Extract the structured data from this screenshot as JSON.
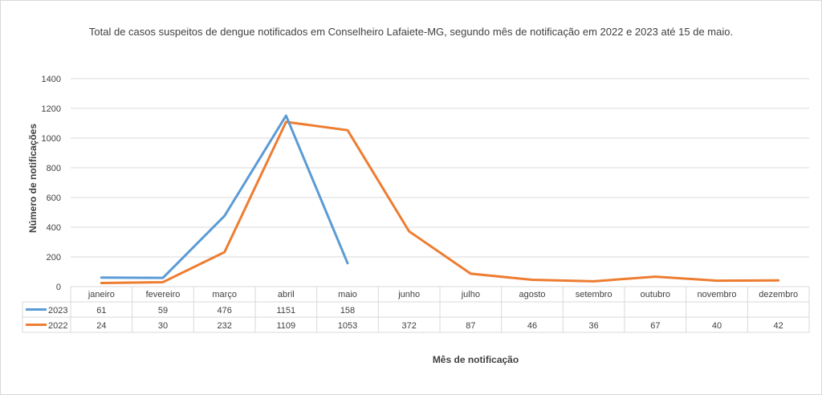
{
  "chart_data": {
    "type": "line",
    "title": "Total de casos suspeitos de dengue notificados em Conselheiro Lafaiete-MG, segundo mês de notificação em 2022 e 2023 até 15 de maio.",
    "xlabel": "Mês de notificação",
    "ylabel": "Número de notificações",
    "ylim": [
      0,
      1400
    ],
    "yticks": [
      "0",
      "200",
      "400",
      "600",
      "800",
      "1000",
      "1200",
      "1400"
    ],
    "grid": true,
    "legend": "data-table",
    "categories": [
      "janeiro",
      "fevereiro",
      "março",
      "abril",
      "maio",
      "junho",
      "julho",
      "agosto",
      "setembro",
      "outubro",
      "novembro",
      "dezembro"
    ],
    "series": [
      {
        "name": "2023",
        "color": "#5b9bd5",
        "values": [
          61,
          59,
          476,
          1151,
          158,
          null,
          null,
          null,
          null,
          null,
          null,
          null
        ]
      },
      {
        "name": "2022",
        "color": "#ed7d31",
        "values": [
          24,
          30,
          232,
          1109,
          1053,
          372,
          87,
          46,
          36,
          67,
          40,
          42
        ]
      }
    ]
  }
}
